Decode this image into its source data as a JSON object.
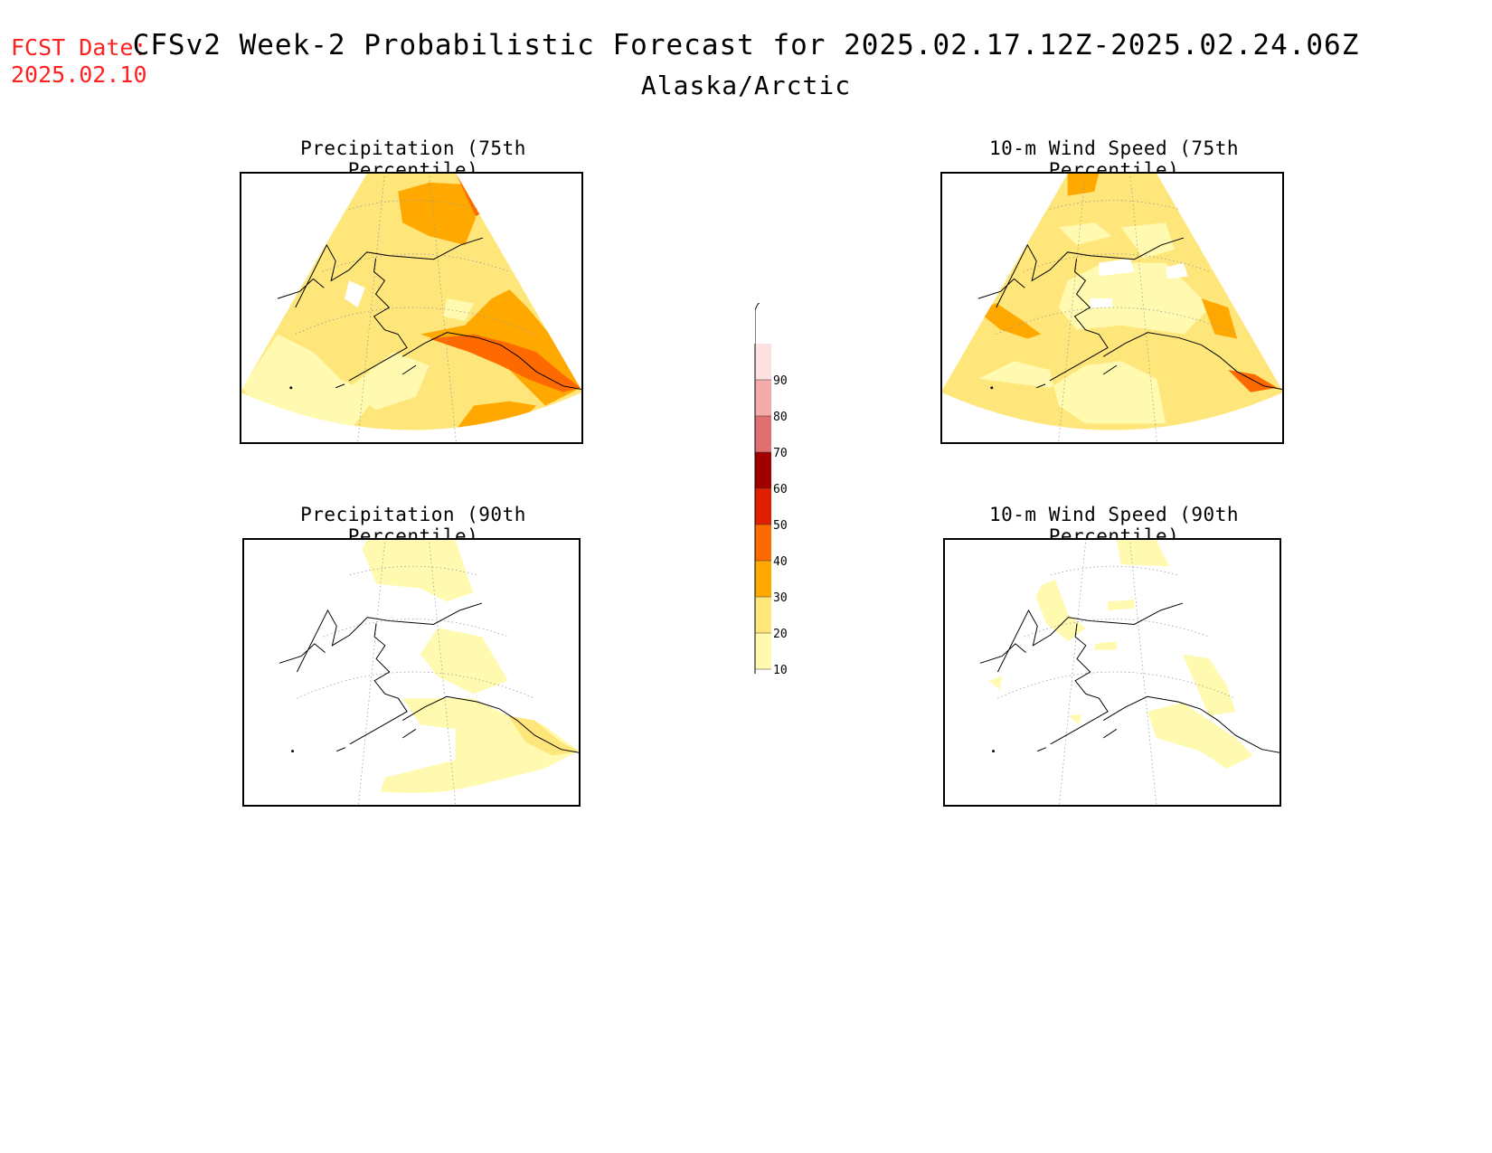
{
  "header": {
    "fcst_label": "FCST Date:",
    "fcst_date": "2025.02.10",
    "title": "CFSv2 Week-2 Probabilistic Forecast for 2025.02.17.12Z-2025.02.24.06Z",
    "region": "Alaska/Arctic"
  },
  "panels": [
    {
      "title": "Precipitation (75th Percentile)",
      "level": "high"
    },
    {
      "title": "10-m Wind Speed (75th Percentile)",
      "level": "mid"
    },
    {
      "title": "Precipitation (90th Percentile)",
      "level": "low"
    },
    {
      "title": "10-m Wind Speed (90th Percentile)",
      "level": "verylow"
    }
  ],
  "colorbar": {
    "levels": [
      "10",
      "20",
      "30",
      "40",
      "50",
      "60",
      "70",
      "80",
      "90"
    ],
    "colors": [
      "#fffaaf",
      "#ffe67a",
      "#ffa800",
      "#ff6a00",
      "#e01e00",
      "#a00000",
      "#e07070",
      "#f5aaaa",
      "#fde0e0"
    ]
  }
}
